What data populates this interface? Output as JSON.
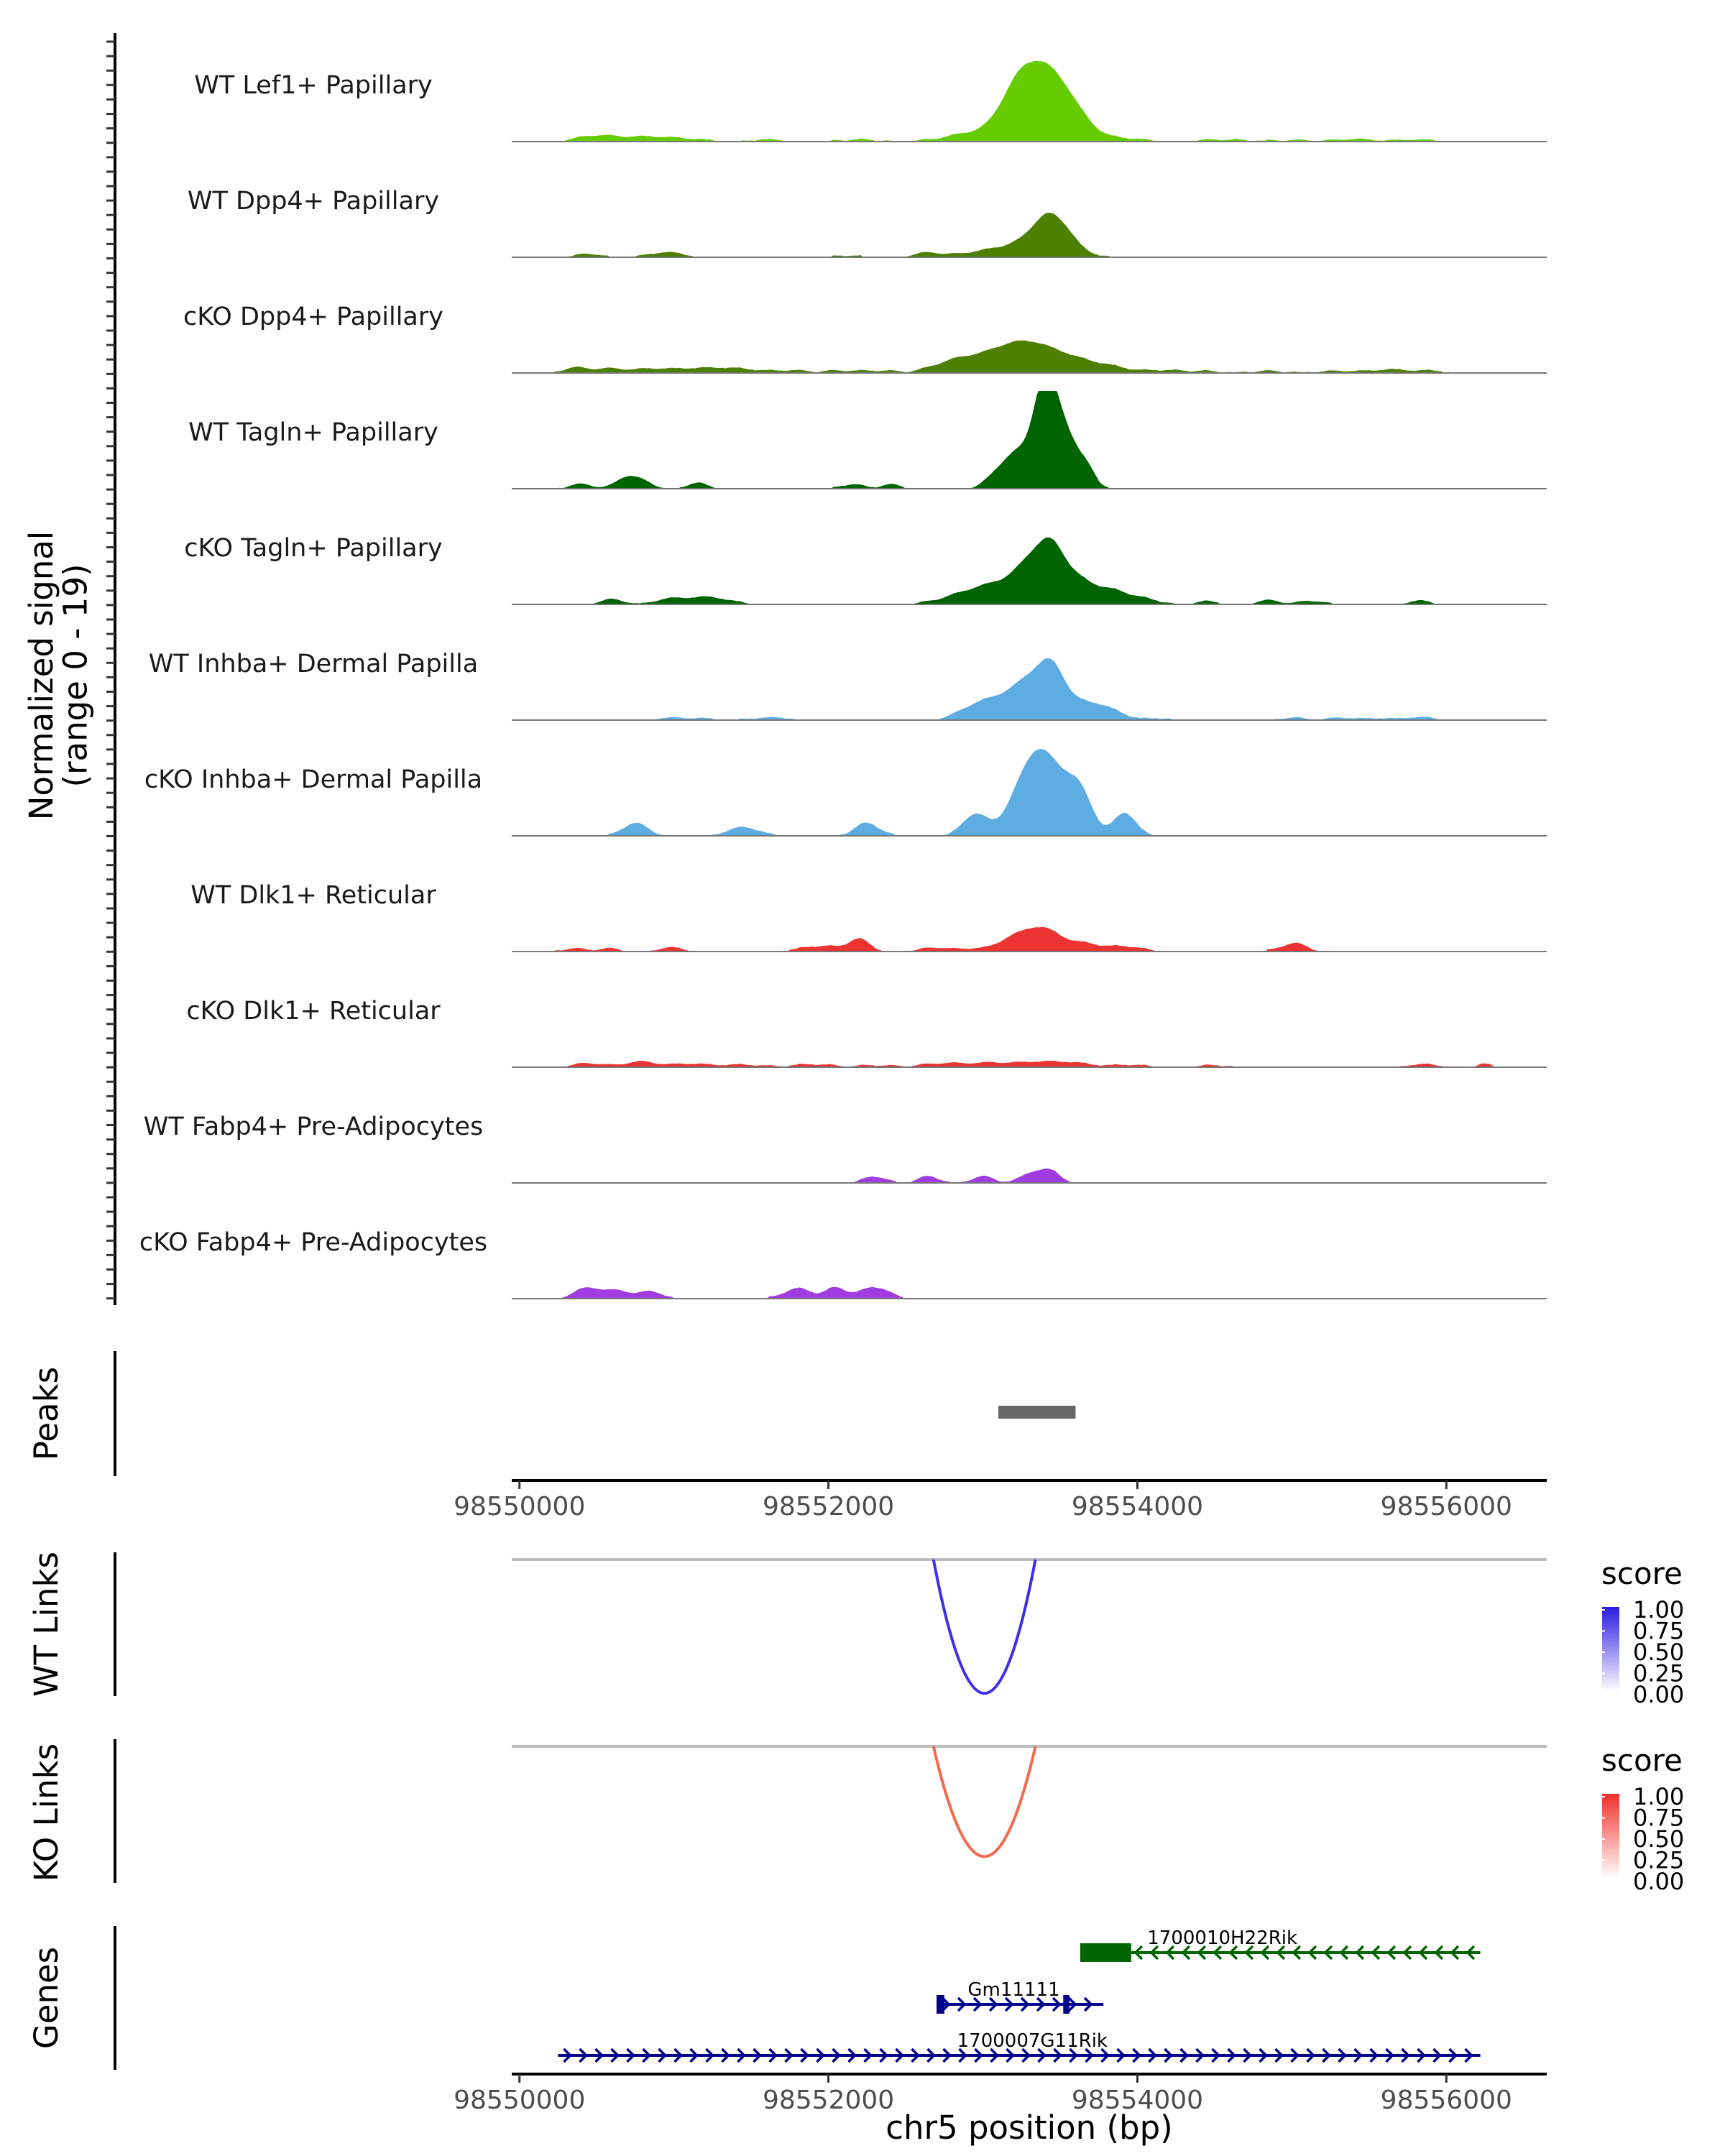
{
  "chart_data": {
    "type": "genome-coverage",
    "chromosome": "chr5",
    "xlim": [
      98549950,
      98556650
    ],
    "x_ticks": [
      98550000,
      98552000,
      98554000,
      98556000
    ],
    "x_tick_labels": [
      "98550000",
      "98552000",
      "98554000",
      "98556000"
    ],
    "xlabel": "chr5 position (bp)",
    "coverage": {
      "ylabel": "Normalized signal\n(range 0 - 19)",
      "y_range": [
        0,
        19
      ],
      "tracks": [
        {
          "name": "WT Lef1+ Papillary",
          "color": "#66CC00",
          "peaks": [
            [
              98550500,
              130,
              1.2
            ],
            [
              98550800,
              130,
              0.8
            ],
            [
              98551050,
              150,
              0.6
            ],
            [
              98551600,
              120,
              0.4
            ],
            [
              98552200,
              150,
              0.4
            ],
            [
              98552950,
              180,
              1.7
            ],
            [
              98553200,
              100,
              3.4
            ],
            [
              98553330,
              150,
              11.5
            ],
            [
              98553500,
              130,
              6
            ],
            [
              98553650,
              100,
              1.5
            ],
            [
              98553900,
              130,
              0.7
            ],
            [
              98554550,
              150,
              0.4
            ],
            [
              98555000,
              130,
              0.3
            ],
            [
              98555400,
              120,
              0.5
            ],
            [
              98555800,
              130,
              0.4
            ]
          ]
        },
        {
          "name": "WT Dpp4+ Papillary",
          "color": "#4D8000",
          "peaks": [
            [
              98550450,
              80,
              0.7
            ],
            [
              98550950,
              110,
              1.0
            ],
            [
              98552120,
              80,
              0.4
            ],
            [
              98552650,
              100,
              0.9
            ],
            [
              98552950,
              120,
              0.8
            ],
            [
              98553150,
              120,
              1.5
            ],
            [
              98553340,
              110,
              3.2
            ],
            [
              98553440,
              90,
              5.8
            ],
            [
              98553560,
              70,
              2.3
            ],
            [
              98553680,
              90,
              0.6
            ]
          ]
        },
        {
          "name": "cKO Dpp4+ Papillary",
          "color": "#4D8000",
          "peaks": [
            [
              98550350,
              70,
              1.0
            ],
            [
              98550550,
              100,
              0.8
            ],
            [
              98550850,
              150,
              0.8
            ],
            [
              98551200,
              160,
              0.9
            ],
            [
              98551450,
              130,
              0.6
            ],
            [
              98551750,
              100,
              0.5
            ],
            [
              98552100,
              130,
              0.5
            ],
            [
              98552350,
              80,
              0.4
            ],
            [
              98552850,
              160,
              2.6
            ],
            [
              98553150,
              150,
              3.6
            ],
            [
              98553350,
              150,
              3.9
            ],
            [
              98553600,
              150,
              2.2
            ],
            [
              98553850,
              120,
              0.9
            ],
            [
              98554150,
              100,
              0.5
            ],
            [
              98554400,
              130,
              0.4
            ],
            [
              98554850,
              130,
              0.4
            ],
            [
              98555300,
              130,
              0.4
            ],
            [
              98555650,
              130,
              0.7
            ],
            [
              98555920,
              80,
              0.4
            ]
          ]
        },
        {
          "name": "WT Tagln+ Papillary",
          "color": "#006400",
          "peaks": [
            [
              98550400,
              80,
              0.9
            ],
            [
              98550700,
              70,
              2.4
            ],
            [
              98550820,
              60,
              1.0
            ],
            [
              98551150,
              60,
              1.2
            ],
            [
              98552150,
              70,
              0.9
            ],
            [
              98552400,
              70,
              0.8
            ],
            [
              98553100,
              80,
              2.8
            ],
            [
              98553230,
              80,
              6.0
            ],
            [
              98553390,
              70,
              17.0
            ],
            [
              98553500,
              80,
              11.5
            ],
            [
              98553640,
              70,
              4.0
            ],
            [
              98553700,
              40,
              1.0
            ]
          ]
        },
        {
          "name": "cKO Tagln+ Papillary",
          "color": "#006400",
          "peaks": [
            [
              98550600,
              80,
              1.0
            ],
            [
              98550950,
              80,
              0.8
            ],
            [
              98551200,
              150,
              1.5
            ],
            [
              98552850,
              150,
              1.5
            ],
            [
              98553100,
              150,
              3.5
            ],
            [
              98553330,
              110,
              7.5
            ],
            [
              98553450,
              80,
              6.0
            ],
            [
              98553600,
              120,
              5.0
            ],
            [
              98553850,
              100,
              2.3
            ],
            [
              98554050,
              100,
              1.0
            ],
            [
              98554450,
              80,
              0.6
            ],
            [
              98554850,
              80,
              0.8
            ],
            [
              98555130,
              80,
              0.7
            ],
            [
              98555820,
              60,
              0.8
            ]
          ]
        },
        {
          "name": "WT Inhba+ Dermal Papilla",
          "color": "#5DADE2",
          "peaks": [
            [
              98550950,
              80,
              0.4
            ],
            [
              98551150,
              100,
              0.4
            ],
            [
              98551550,
              100,
              0.4
            ],
            [
              98551700,
              60,
              0.4
            ],
            [
              98552950,
              120,
              2.0
            ],
            [
              98553150,
              150,
              3.3
            ],
            [
              98553330,
              120,
              6.0
            ],
            [
              98553450,
              80,
              5.7
            ],
            [
              98553600,
              150,
              3.0
            ],
            [
              98553800,
              120,
              1.5
            ],
            [
              98554150,
              60,
              0.4
            ],
            [
              98555000,
              80,
              0.5
            ],
            [
              98555320,
              80,
              0.5
            ],
            [
              98555550,
              80,
              0.4
            ],
            [
              98555820,
              100,
              0.6
            ]
          ]
        },
        {
          "name": "cKO Inhba+ Dermal Papilla",
          "color": "#5DADE2",
          "peaks": [
            [
              98550750,
              80,
              2.5
            ],
            [
              98551450,
              100,
              1.7
            ],
            [
              98552250,
              80,
              2.5
            ],
            [
              98552950,
              80,
              4.2
            ],
            [
              98553260,
              110,
              8.0
            ],
            [
              98553380,
              100,
              9.5
            ],
            [
              98553530,
              110,
              7.5
            ],
            [
              98553640,
              80,
              5.0
            ],
            [
              98553920,
              70,
              4.5
            ]
          ]
        },
        {
          "name": "WT Dlk1+ Reticular",
          "color": "#EE3333",
          "peaks": [
            [
              98550350,
              80,
              0.6
            ],
            [
              98550580,
              70,
              0.6
            ],
            [
              98550980,
              80,
              0.8
            ],
            [
              98551950,
              130,
              1.1
            ],
            [
              98552200,
              70,
              2.3
            ],
            [
              98552700,
              100,
              0.8
            ],
            [
              98552950,
              80,
              0.6
            ],
            [
              98553150,
              80,
              1.3
            ],
            [
              98553300,
              110,
              3.2
            ],
            [
              98553450,
              110,
              2.8
            ],
            [
              98553670,
              80,
              1.2
            ],
            [
              98553900,
              120,
              1.1
            ],
            [
              98554980,
              80,
              1.0
            ],
            [
              98555050,
              70,
              0.8
            ]
          ]
        },
        {
          "name": "cKO Dlk1+ Reticular",
          "color": "#EE3333",
          "peaks": [
            [
              98550450,
              100,
              0.8
            ],
            [
              98550780,
              100,
              1.1
            ],
            [
              98551100,
              130,
              0.7
            ],
            [
              98551450,
              130,
              0.5
            ],
            [
              98551900,
              130,
              0.6
            ],
            [
              98552300,
              100,
              0.4
            ],
            [
              98552750,
              150,
              0.8
            ],
            [
              98553050,
              120,
              0.7
            ],
            [
              98553350,
              150,
              1.0
            ],
            [
              98553600,
              130,
              0.7
            ],
            [
              98553950,
              100,
              0.5
            ],
            [
              98554500,
              100,
              0.4
            ],
            [
              98555850,
              100,
              0.6
            ],
            [
              98556240,
              40,
              0.7
            ]
          ]
        },
        {
          "name": "WT Fabp4+ Pre-Adipocytes",
          "color": "#A03CE0",
          "peaks": [
            [
              98552300,
              70,
              1.3
            ],
            [
              98552650,
              70,
              1.3
            ],
            [
              98553000,
              70,
              1.3
            ],
            [
              98553330,
              80,
              2.1
            ],
            [
              98553450,
              60,
              1.8
            ]
          ]
        },
        {
          "name": "cKO Fabp4+ Pre-Adipocytes",
          "color": "#A03CE0",
          "peaks": [
            [
              98550450,
              90,
              2.2
            ],
            [
              98550650,
              70,
              1.5
            ],
            [
              98550850,
              70,
              1.5
            ],
            [
              98551800,
              90,
              2.0
            ],
            [
              98552050,
              70,
              2.1
            ],
            [
              98552300,
              90,
              2.3
            ]
          ]
        }
      ]
    },
    "peaks_track": {
      "label": "Peaks",
      "color": "#666666",
      "regions": [
        [
          98553100,
          98553600
        ]
      ]
    },
    "links": [
      {
        "label": "WT Links",
        "color": "#3F2FE6",
        "legend_low": "#FFFFFF",
        "legend_high": "#2B1BE0",
        "legend_title": "score",
        "legend_ticks": [
          "1.00",
          "0.75",
          "0.50",
          "0.25",
          "0.00"
        ],
        "arcs": [
          {
            "start": 98552680,
            "end": 98553340,
            "score": 0.85
          }
        ]
      },
      {
        "label": "KO Links",
        "color": "#F26B50",
        "legend_low": "#FFFFFF",
        "legend_high": "#F0302A",
        "legend_title": "score",
        "legend_ticks": [
          "1.00",
          "0.75",
          "0.50",
          "0.25",
          "0.00"
        ],
        "arcs": [
          {
            "start": 98552680,
            "end": 98553340,
            "score": 0.7
          }
        ]
      }
    ],
    "genes": {
      "label": "Genes",
      "items": [
        {
          "name": "1700010H22Rik",
          "start": 98553630,
          "end": 98556220,
          "strand": "-",
          "color": "#006400",
          "exons": [
            [
              98553630,
              98553960
            ]
          ],
          "label_x": 98554550
        },
        {
          "name": "Gm11111",
          "start": 98552700,
          "end": 98553780,
          "strand": "+",
          "color": "#00008B",
          "exons": [
            [
              98552700,
              98552750
            ],
            [
              98553520,
              98553560
            ]
          ],
          "label_x": 98553200
        },
        {
          "name": "1700007G11Rik",
          "start": 98550250,
          "end": 98556220,
          "strand": "+",
          "color": "#00008B",
          "exons": [],
          "label_x": 98553320
        }
      ]
    }
  }
}
